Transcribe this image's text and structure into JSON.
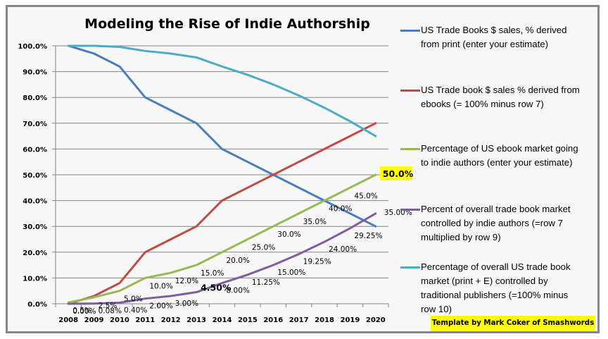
{
  "chart_data": {
    "type": "line",
    "title": "Modeling the Rise of Indie Authorship",
    "xlabel": "",
    "ylabel": "",
    "ylim": [
      0,
      100
    ],
    "grid": true,
    "legend_position": "right",
    "categories": [
      "2008",
      "2009",
      "2010",
      "2011",
      "2012",
      "2013",
      "2014",
      "2015",
      "2016",
      "2017",
      "2018",
      "2019",
      "2020"
    ],
    "y_ticks": [
      "0.0%",
      "10.0%",
      "20.0%",
      "30.0%",
      "40.0%",
      "50.0%",
      "60.0%",
      "70.0%",
      "80.0%",
      "90.0%",
      "100.0%"
    ],
    "series": [
      {
        "name": "US Trade Books $ sales, % derived from print (enter your estimate)",
        "legend_lines": [
          "US Trade Books $ sales, % derived",
          "from print (enter your estimate)"
        ],
        "color": "#4a7ebb",
        "values": [
          100,
          97,
          92,
          80,
          75,
          70,
          60,
          55,
          50,
          45,
          40,
          35,
          30
        ],
        "labels": []
      },
      {
        "name": "US Trade book $ sales % derived from ebooks (= 100% minus row 7)",
        "legend_lines": [
          "US Trade book $ sales % derived from",
          "ebooks (= 100% minus row 7)"
        ],
        "color": "#be4b48",
        "values": [
          0,
          3,
          8,
          20,
          25,
          30,
          40,
          45,
          50,
          55,
          60,
          65,
          70
        ],
        "labels": []
      },
      {
        "name": "Percentage of US ebook market going to indie authors (enter your estimate)",
        "legend_lines": [
          "Percentage of US ebook market going",
          "to indie authors (enter your estimate)"
        ],
        "color": "#98b954",
        "values": [
          0.5,
          2.5,
          5,
          10,
          12,
          15,
          20,
          25,
          30,
          35,
          40,
          45,
          50
        ],
        "labels": [
          "0.5%",
          "2.5%",
          "5.0%",
          "10.0%",
          "12.0%",
          "15.0%",
          "20.0%",
          "25.0%",
          "30.0%",
          "35.0%",
          "40.0%",
          "45.0%",
          "50.0%"
        ],
        "highlight_label": "50.0%"
      },
      {
        "name": "Percent of overall trade book market controlled by indie authors (=row 7 multiplied by row 9)",
        "legend_lines": [
          "Percent of overall trade book market",
          "controlled by indie authors (=row 7",
          "multiplied by row 9)"
        ],
        "color": "#7d5fa0",
        "values": [
          0,
          0.08,
          0.4,
          2,
          3,
          4.5,
          8,
          11.25,
          15,
          19.25,
          24,
          29.25,
          35
        ],
        "labels": [
          "0.00%",
          "0.08%",
          "0.40%",
          "2.00%",
          "3.00%",
          "4.50%",
          "8.00%",
          "11.25%",
          "15.00%",
          "19.25%",
          "24.00%",
          "29.25%",
          "35.00%"
        ],
        "bold_label": "4.50%"
      },
      {
        "name": "Percentage of overall US trade book market (print + E) controlled by traditional publishers (=100% minus row 10)",
        "legend_lines": [
          "Percentage of overall US trade book",
          "market (print + E) controlled by",
          "traditional publishers (=100% minus",
          "row 10)"
        ],
        "color": "#4bacc6",
        "values": [
          100,
          100,
          99.6,
          98,
          97,
          95.5,
          92,
          88.75,
          85,
          80.75,
          76,
          70.75,
          65
        ],
        "labels": []
      }
    ],
    "annotation": "Template by Mark Coker of Smashwords"
  },
  "colors": {
    "background": "#f7f7f7",
    "border": "#878787",
    "gridline": "#868686",
    "highlight": "#ffff00"
  }
}
